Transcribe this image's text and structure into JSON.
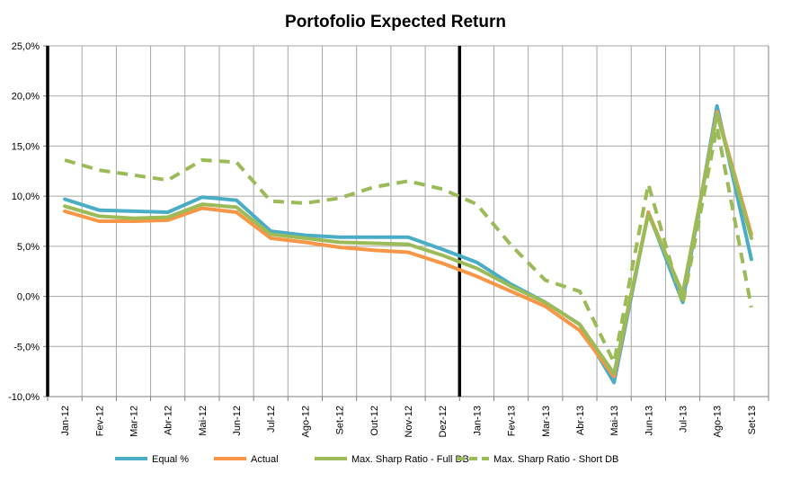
{
  "chart_data": {
    "type": "line",
    "title": "Portofolio Expected Return",
    "xlabel": "",
    "ylabel": "",
    "ylim": [
      -10,
      25
    ],
    "y_ticks": [
      "25,0%",
      "20,0%",
      "15,0%",
      "10,0%",
      "5,0%",
      "0,0%",
      "-5,0%",
      "-10,0%"
    ],
    "grid": true,
    "legend_position": "bottom",
    "categories": [
      "Jan-12",
      "Fev-12",
      "Mar-12",
      "Abr-12",
      "Mai-12",
      "Jun-12",
      "Jul-12",
      "Ago-12",
      "Set-12",
      "Out-12",
      "Nov-12",
      "Dez-12",
      "Jan-13",
      "Fev-13",
      "Mar-13",
      "Abr-13",
      "Mai-13",
      "Jun-13",
      "Jul-13",
      "Ago-13",
      "Set-13"
    ],
    "vertical_markers": [
      {
        "between": [
          "Dez-12",
          "Jan-13"
        ],
        "color": "#000000"
      }
    ],
    "left_axis_line_color": "#000000",
    "series": [
      {
        "name": "Equal %",
        "color": "#4BACC6",
        "dashed": false,
        "values": [
          9.7,
          8.6,
          8.5,
          8.4,
          9.9,
          9.6,
          6.5,
          6.1,
          5.9,
          5.9,
          5.9,
          4.7,
          3.4,
          1.2,
          -0.6,
          -2.8,
          -8.6,
          8.4,
          -0.6,
          19.0,
          3.7
        ]
      },
      {
        "name": "Actual",
        "color": "#F79646",
        "dashed": false,
        "values": [
          8.5,
          7.5,
          7.5,
          7.6,
          8.8,
          8.4,
          5.8,
          5.4,
          4.9,
          4.6,
          4.4,
          3.3,
          2.0,
          0.5,
          -1.0,
          -3.4,
          -8.0,
          8.4,
          0.2,
          18.4,
          6.2
        ]
      },
      {
        "name": "Max. Sharp Ratio - Full DB",
        "color": "#9BBB59",
        "dashed": false,
        "values": [
          9.0,
          8.0,
          7.8,
          7.9,
          9.2,
          8.9,
          6.2,
          5.8,
          5.4,
          5.3,
          5.2,
          4.1,
          2.8,
          1.0,
          -0.6,
          -2.8,
          -7.7,
          8.2,
          0.3,
          18.2,
          5.8
        ]
      },
      {
        "name": "Max. Sharp Ratio - Short DB",
        "color": "#9BBB59",
        "dashed": true,
        "values": [
          13.6,
          12.6,
          12.1,
          11.6,
          13.6,
          13.4,
          9.5,
          9.3,
          9.8,
          10.9,
          11.5,
          10.7,
          9.2,
          5.1,
          1.6,
          0.5,
          -6.6,
          11.2,
          -0.8,
          16.9,
          -1.1
        ]
      }
    ]
  }
}
